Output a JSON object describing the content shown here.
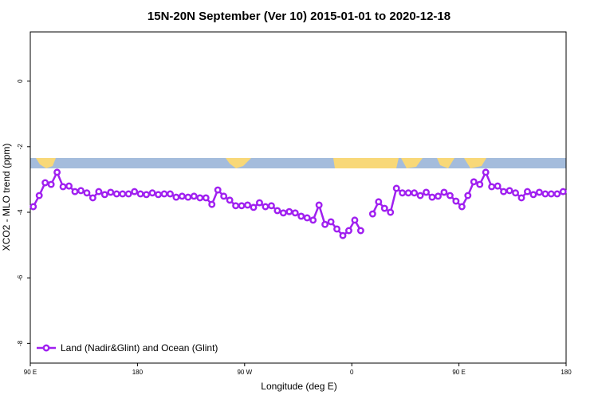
{
  "chart_data": {
    "type": "line",
    "title": "15N-20N September (Ver 10)   2015-01-01 to 2020-12-18",
    "x_label": "Longitude (deg E)",
    "y_label": "XCO2 - MLO trend (ppm)",
    "xlim": [
      90,
      540
    ],
    "ylim": [
      -8.6,
      1.5
    ],
    "xticks": [
      {
        "value": 90,
        "label": "90 E"
      },
      {
        "value": 180,
        "label": "180"
      },
      {
        "value": 270,
        "label": "90 W"
      },
      {
        "value": 360,
        "label": "0"
      },
      {
        "value": 450,
        "label": "90 E"
      },
      {
        "value": 540,
        "label": "180"
      }
    ],
    "yticks": [
      0,
      -2,
      -4,
      -6,
      -8
    ],
    "legend_position": "bottom-left",
    "x": [
      92.5,
      97.5,
      102.5,
      107.5,
      112.5,
      117.5,
      122.5,
      127.5,
      132.5,
      137.5,
      142.5,
      147.5,
      152.5,
      157.5,
      162.5,
      167.5,
      172.5,
      177.5,
      182.5,
      187.5,
      192.5,
      197.5,
      202.5,
      207.5,
      212.5,
      217.5,
      222.5,
      227.5,
      232.5,
      237.5,
      242.5,
      247.5,
      252.5,
      257.5,
      262.5,
      267.5,
      272.5,
      277.5,
      282.5,
      287.5,
      292.5,
      297.5,
      302.5,
      307.5,
      312.5,
      317.5,
      322.5,
      327.5,
      332.5,
      337.5,
      342.5,
      347.5,
      352.5,
      357.5,
      362.5,
      367.5,
      372.5,
      377.5,
      382.5,
      387.5,
      392.5,
      397.5,
      402.5,
      407.5,
      412.5,
      417.5,
      422.5,
      427.5,
      432.5,
      437.5,
      442.5,
      447.5,
      452.5,
      457.5,
      462.5,
      467.5,
      472.5,
      477.5,
      482.5,
      487.5,
      492.5,
      497.5,
      502.5,
      507.5,
      512.5,
      517.5,
      522.5,
      527.5,
      532.5,
      537.5
    ],
    "series": [
      {
        "name": "Land (Nadir&Glint) and Ocean (Glint)",
        "color": "#a020f0",
        "values": [
          -3.83,
          -3.49,
          -3.1,
          -3.15,
          -2.78,
          -3.22,
          -3.2,
          -3.37,
          -3.34,
          -3.41,
          -3.56,
          -3.37,
          -3.46,
          -3.39,
          -3.44,
          -3.44,
          -3.44,
          -3.37,
          -3.44,
          -3.46,
          -3.41,
          -3.46,
          -3.44,
          -3.44,
          -3.54,
          -3.51,
          -3.54,
          -3.51,
          -3.56,
          -3.56,
          -3.76,
          -3.32,
          -3.51,
          -3.63,
          -3.8,
          -3.8,
          -3.78,
          -3.85,
          -3.71,
          -3.83,
          -3.8,
          -3.95,
          -4.02,
          -3.98,
          -4.02,
          -4.12,
          -4.17,
          -4.24,
          -3.78,
          -4.37,
          -4.29,
          -4.51,
          -4.71,
          -4.56,
          -4.24,
          -4.56,
          null,
          -4.05,
          -3.68,
          -3.88,
          -4.0,
          -3.27,
          -3.41,
          -3.41,
          -3.41,
          -3.49,
          -3.39,
          -3.54,
          -3.51,
          -3.39,
          -3.49,
          -3.66,
          -3.83,
          -3.49,
          -3.07,
          -3.15,
          -2.78,
          -3.22,
          -3.2,
          -3.37,
          -3.34,
          -3.41,
          -3.56,
          -3.37,
          -3.46,
          -3.39,
          -3.44,
          -3.44,
          -3.44,
          -3.37
        ]
      }
    ]
  }
}
